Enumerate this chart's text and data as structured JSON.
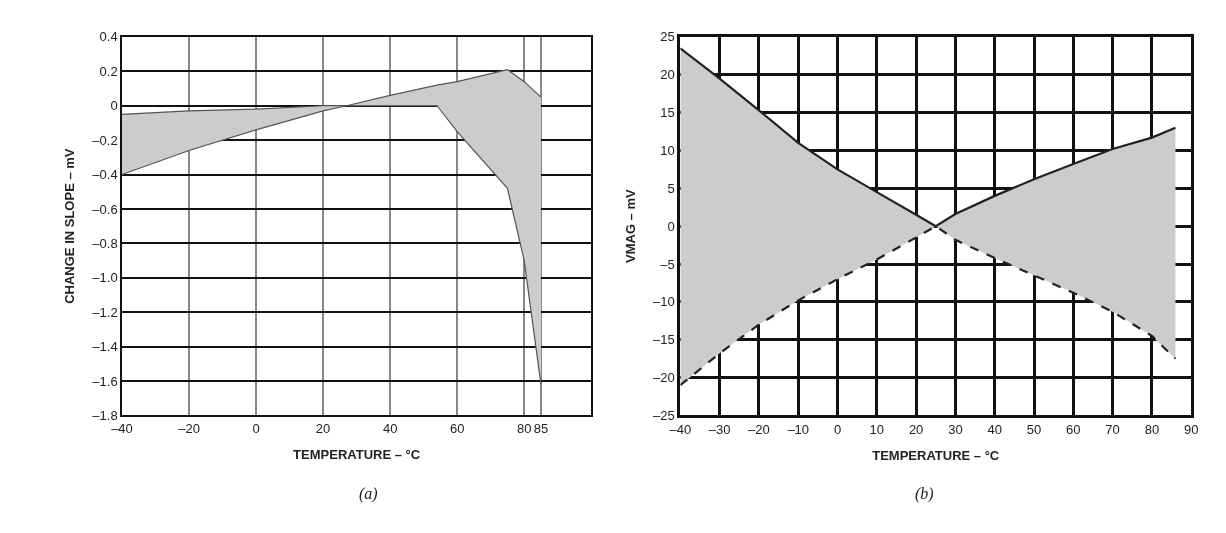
{
  "chart_data": [
    {
      "type": "line",
      "xlabel": "TEMPERATURE – °C",
      "ylabel": "CHANGE IN SLOPE – mV",
      "annotations": [
        "(a)"
      ],
      "xlim": [
        -40,
        100
      ],
      "xticks": [
        {
          "value": -40,
          "label": "–40"
        },
        {
          "value": -20,
          "label": "–20"
        },
        0,
        20,
        40,
        60,
        80,
        85
      ],
      "ylim": [
        -1.8,
        0.4
      ],
      "yticks": [
        {
          "value": -1.8,
          "label": "–1.8"
        },
        {
          "value": -1.6,
          "label": "–1.6"
        },
        {
          "value": -1.4,
          "label": "–1.4"
        },
        {
          "value": -1.2,
          "label": "–1.2"
        },
        {
          "value": -1.0,
          "label": "–1.0"
        },
        {
          "value": -0.8,
          "label": "–0.8"
        },
        {
          "value": -0.6,
          "label": "–0.6"
        },
        {
          "value": -0.4,
          "label": "–0.4"
        },
        {
          "value": -0.2,
          "label": "–0.2"
        },
        0,
        0.2,
        0.4
      ],
      "grid": true,
      "line_style": "solid",
      "x": [
        -40,
        -20,
        0,
        20,
        27,
        40,
        54,
        60,
        75,
        80,
        85
      ],
      "series": [
        {
          "color": "#555555",
          "values": [
            -0.05,
            -0.03,
            -0.02,
            0,
            0,
            0,
            0,
            -0.15,
            -0.48,
            -0.9,
            -1.62
          ],
          "lower": [
            -0.4,
            -0.26,
            -0.14,
            -0.03,
            0,
            0,
            0,
            -0.15,
            -0.48,
            -0.9,
            -1.62
          ],
          "upper": [
            -0.05,
            -0.03,
            -0.02,
            0,
            0,
            0.06,
            0.12,
            0.14,
            0.21,
            0.14,
            0.05
          ]
        },
        {
          "color": "#555555",
          "values": [
            -0.4,
            -0.26,
            -0.14,
            -0.03,
            0,
            0.06,
            0.12,
            0.14,
            0.21,
            0.14,
            0.05
          ]
        }
      ]
    },
    {
      "type": "line",
      "xlabel": "TEMPERATURE – °C",
      "ylabel": "VMAG – mV",
      "annotations": [
        "(b)"
      ],
      "xlim": [
        -40,
        90
      ],
      "xticks": [
        {
          "value": -40,
          "label": "–40"
        },
        {
          "value": -30,
          "label": "–30"
        },
        {
          "value": -20,
          "label": "–20"
        },
        {
          "value": -10,
          "label": "–10"
        },
        0,
        10,
        20,
        30,
        40,
        50,
        60,
        70,
        80,
        90
      ],
      "ylim": [
        -25,
        25
      ],
      "yticks": [
        {
          "value": -25,
          "label": "–25"
        },
        {
          "value": -20,
          "label": "–20"
        },
        {
          "value": -15,
          "label": "–15"
        },
        {
          "value": -10,
          "label": "–10"
        },
        {
          "value": -5,
          "label": "–5"
        },
        0,
        5,
        10,
        15,
        20,
        25
      ],
      "grid": true,
      "x": [
        -40,
        -30,
        -20,
        -10,
        0,
        10,
        20,
        25,
        30,
        40,
        50,
        60,
        70,
        80,
        86
      ],
      "series": [
        {
          "color": "#222222",
          "line_style": "solid",
          "values": [
            23.5,
            19.5,
            15.3,
            11,
            7.5,
            4.5,
            1.5,
            0,
            1.6,
            4,
            6.2,
            8.2,
            10.2,
            11.7,
            13
          ],
          "lower": [
            -21,
            -16.8,
            -13,
            -9.8,
            -7,
            -4.4,
            -1.5,
            0,
            -1.8,
            -4.2,
            -6.5,
            -8.8,
            -11.3,
            -14.5,
            -17.5
          ],
          "upper": [
            23.5,
            19.5,
            15.3,
            11,
            7.5,
            4.5,
            1.5,
            0,
            1.6,
            4,
            6.2,
            8.2,
            10.2,
            11.7,
            13
          ]
        },
        {
          "color": "#222222",
          "line_style": "dashed",
          "values": [
            -21,
            -16.8,
            -13,
            -9.8,
            -7,
            -4.4,
            -1.5,
            0,
            -1.8,
            -4.2,
            -6.5,
            -8.8,
            -11.3,
            -14.5,
            -17.5
          ]
        }
      ]
    }
  ]
}
